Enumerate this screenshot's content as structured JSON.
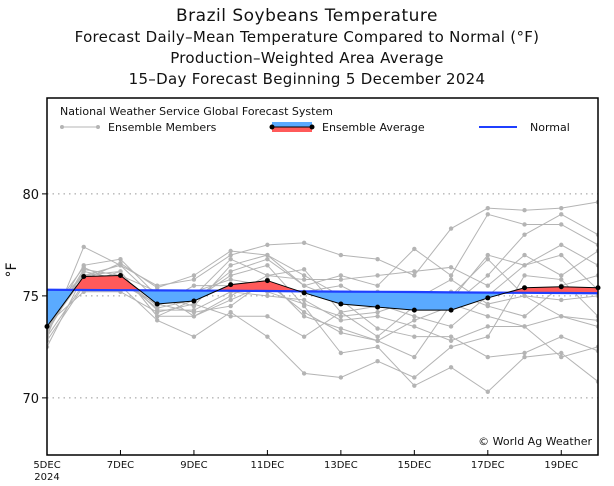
{
  "chart_data": {
    "type": "line",
    "title": "Brazil Soybeans Temperature",
    "subtitles": [
      "Forecast Daily–Mean Temperature Compared to Normal (°F)",
      "Production–Weighted Area Average",
      "15–Day Forecast Beginning 5 December 2024"
    ],
    "source_note": "National Weather Service Global Forecast System",
    "ylabel": "°F",
    "xlabel": "",
    "ylim": [
      67.2,
      84.7
    ],
    "yticks": [
      70,
      75,
      80
    ],
    "x": [
      "5DEC",
      "6DEC",
      "7DEC",
      "8DEC",
      "9DEC",
      "10DEC",
      "11DEC",
      "12DEC",
      "13DEC",
      "14DEC",
      "15DEC",
      "16DEC",
      "17DEC",
      "18DEC",
      "19DEC",
      "20DEC"
    ],
    "xtick_labels": [
      {
        "day": "5DEC",
        "sub": "2024"
      },
      {
        "day": "7DEC"
      },
      {
        "day": "9DEC"
      },
      {
        "day": "11DEC"
      },
      {
        "day": "13DEC"
      },
      {
        "day": "15DEC"
      },
      {
        "day": "17DEC"
      },
      {
        "day": "19DEC"
      }
    ],
    "grid": "horizontal dotted",
    "legend": {
      "placement": "top",
      "members_label": "Ensemble Members",
      "average_label": "Ensemble Average",
      "normal_label": "Normal"
    },
    "copyright": "© World Ag Weather",
    "colors": {
      "members": "#b4b4b4",
      "above": "#ff5a5a",
      "below": "#5aaaff",
      "normal": "#1f3fff",
      "average": "#000000"
    },
    "ensemble_average": [
      73.5,
      75.95,
      76.0,
      74.6,
      74.75,
      75.55,
      75.75,
      75.15,
      74.6,
      74.45,
      74.3,
      74.3,
      74.9,
      75.4,
      75.45,
      75.4
    ],
    "normal": [
      75.3,
      75.29,
      75.28,
      75.27,
      75.26,
      75.25,
      75.24,
      75.22,
      75.21,
      75.2,
      75.19,
      75.17,
      75.16,
      75.15,
      75.14,
      75.13
    ],
    "ensemble_members": [
      [
        73.0,
        77.4,
        76.5,
        75.5,
        75.8,
        77.0,
        77.5,
        77.6,
        77.0,
        76.8,
        76.0,
        78.3,
        79.3,
        79.2,
        79.3,
        79.6
      ],
      [
        73.5,
        76.5,
        76.8,
        75.0,
        74.5,
        76.5,
        77.0,
        75.5,
        76.0,
        75.5,
        77.3,
        76.0,
        79.0,
        78.5,
        78.5,
        77.5
      ],
      [
        74.0,
        76.0,
        76.2,
        74.0,
        74.0,
        75.0,
        76.0,
        76.3,
        74.2,
        73.0,
        74.5,
        74.8,
        77.0,
        76.5,
        77.5,
        76.5
      ],
      [
        72.8,
        75.5,
        75.5,
        73.8,
        73.0,
        74.2,
        73.0,
        71.2,
        71.0,
        71.8,
        71.0,
        72.5,
        73.0,
        76.0,
        75.8,
        74.0
      ],
      [
        73.2,
        76.2,
        75.8,
        74.4,
        74.8,
        76.0,
        76.5,
        74.5,
        72.2,
        72.5,
        70.6,
        71.5,
        70.3,
        72.0,
        72.2,
        70.8
      ],
      [
        74.2,
        75.8,
        76.0,
        75.2,
        75.2,
        75.8,
        75.5,
        75.2,
        75.5,
        74.6,
        74.0,
        73.5,
        75.0,
        76.5,
        77.0,
        75.3
      ],
      [
        73.6,
        75.2,
        75.2,
        74.2,
        74.6,
        74.0,
        74.0,
        73.0,
        74.2,
        74.5,
        75.0,
        75.0,
        76.8,
        75.0,
        74.0,
        73.5
      ],
      [
        72.5,
        76.0,
        76.5,
        74.8,
        75.0,
        76.8,
        76.0,
        75.8,
        75.8,
        76.0,
        76.2,
        76.4,
        75.5,
        77.0,
        76.0,
        77.2
      ],
      [
        73.3,
        76.3,
        76.0,
        74.3,
        74.3,
        75.2,
        75.0,
        74.8,
        73.8,
        74.0,
        73.5,
        72.8,
        73.5,
        73.5,
        72.0,
        72.5
      ],
      [
        73.8,
        75.8,
        76.6,
        75.4,
        76.0,
        77.2,
        77.0,
        76.0,
        75.0,
        75.2,
        75.0,
        75.2,
        74.5,
        74.0,
        75.5,
        76.0
      ],
      [
        74.0,
        76.4,
        75.6,
        74.6,
        74.2,
        74.5,
        75.8,
        74.0,
        73.4,
        72.8,
        73.8,
        74.5,
        76.0,
        78.0,
        79.0,
        78.0
      ],
      [
        73.0,
        75.6,
        76.2,
        74.0,
        74.8,
        76.2,
        76.8,
        75.5,
        74.8,
        73.4,
        73.0,
        73.0,
        72.0,
        72.2,
        73.0,
        72.3
      ],
      [
        74.3,
        76.0,
        75.9,
        74.5,
        75.5,
        75.5,
        75.2,
        74.6,
        74.0,
        74.2,
        74.8,
        75.8,
        74.6,
        75.0,
        74.8,
        75.0
      ],
      [
        73.4,
        75.9,
        75.4,
        75.2,
        74.0,
        74.8,
        75.6,
        74.2,
        73.2,
        72.8,
        72.0,
        74.6,
        74.0,
        73.5,
        74.0,
        73.8
      ]
    ]
  }
}
